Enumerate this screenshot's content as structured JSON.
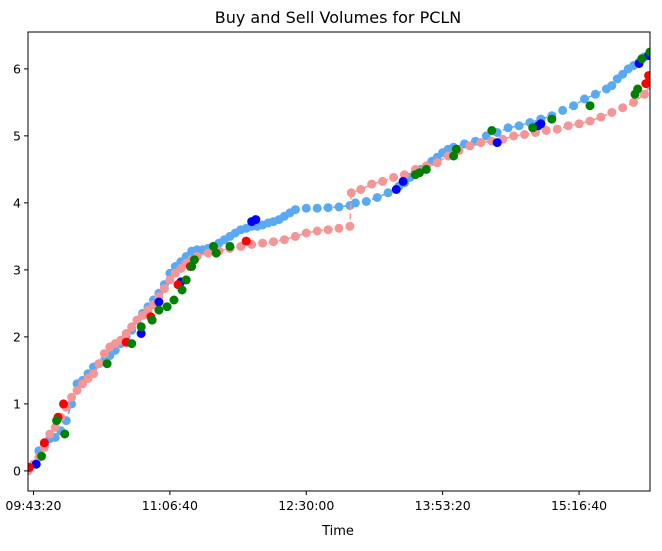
{
  "chart_data": {
    "type": "scatter",
    "title": "Buy and Sell Volumes for PCLN",
    "xlabel": "Time",
    "ylabel": "",
    "x_unit": "seconds since midnight",
    "xlim": [
      34800,
      57600
    ],
    "ylim": [
      -0.3,
      6.55
    ],
    "x_ticks": [
      35000,
      40000,
      45000,
      50000,
      55000
    ],
    "x_tick_labels": [
      "09:43:20",
      "11:06:40",
      "12:30:00",
      "13:53:20",
      "15:16:40"
    ],
    "y_ticks": [
      0,
      1,
      2,
      3,
      4,
      5,
      6
    ],
    "y_tick_labels": [
      "0",
      "1",
      "2",
      "3",
      "4",
      "5",
      "6"
    ],
    "grid": false,
    "legend": false,
    "series": [
      {
        "role": "buy-volume",
        "color": "#5aa9f5",
        "style": "dashed-line-with-markers",
        "x": [
          34800,
          35000,
          35200,
          35400,
          35600,
          35800,
          36000,
          36200,
          36400,
          36600,
          36800,
          37000,
          37200,
          37400,
          37600,
          37800,
          38000,
          38200,
          38400,
          38600,
          38800,
          39000,
          39200,
          39400,
          39600,
          39800,
          40000,
          40200,
          40400,
          40600,
          40800,
          41000,
          41200,
          41400,
          41600,
          41800,
          42000,
          42200,
          42400,
          42600,
          42800,
          43000,
          43200,
          43400,
          43600,
          43800,
          44000,
          44200,
          44400,
          44600,
          45000,
          45400,
          45800,
          46200,
          46600,
          46800,
          47200,
          47600,
          48000,
          48400,
          48600,
          48800,
          49000,
          49200,
          49400,
          49600,
          49800,
          50000,
          50200,
          50400,
          50800,
          51200,
          51600,
          52000,
          52400,
          52800,
          53200,
          53600,
          54000,
          54400,
          54800,
          55200,
          55600,
          56000,
          56200,
          56400,
          56600,
          56800,
          57000,
          57200,
          57400,
          57600
        ],
        "y": [
          0.05,
          0.1,
          0.3,
          0.4,
          0.48,
          0.5,
          0.6,
          0.75,
          1.0,
          1.3,
          1.35,
          1.45,
          1.55,
          1.6,
          1.65,
          1.72,
          1.8,
          1.9,
          2.0,
          2.1,
          2.25,
          2.35,
          2.45,
          2.55,
          2.65,
          2.78,
          2.95,
          3.05,
          3.12,
          3.2,
          3.28,
          3.3,
          3.3,
          3.32,
          3.35,
          3.4,
          3.45,
          3.5,
          3.55,
          3.6,
          3.62,
          3.65,
          3.65,
          3.67,
          3.7,
          3.72,
          3.75,
          3.8,
          3.85,
          3.9,
          3.92,
          3.92,
          3.93,
          3.94,
          3.96,
          4.0,
          4.02,
          4.08,
          4.15,
          4.25,
          4.3,
          4.38,
          4.45,
          4.5,
          4.55,
          4.62,
          4.68,
          4.75,
          4.8,
          4.83,
          4.88,
          4.92,
          5.0,
          5.05,
          5.12,
          5.15,
          5.2,
          5.25,
          5.3,
          5.38,
          5.45,
          5.55,
          5.62,
          5.7,
          5.75,
          5.85,
          5.92,
          6.0,
          6.05,
          6.1,
          6.18,
          6.25
        ]
      },
      {
        "role": "sell-volume",
        "color": "#f59595",
        "style": "dashed-line-with-markers",
        "x": [
          34800,
          35000,
          35200,
          35400,
          35600,
          35800,
          36000,
          36200,
          36400,
          36600,
          36800,
          37000,
          37200,
          37400,
          37600,
          37800,
          38000,
          38200,
          38400,
          38600,
          38800,
          39000,
          39200,
          39400,
          39600,
          39800,
          40000,
          40200,
          40400,
          40600,
          40800,
          41000,
          41400,
          41800,
          42200,
          42600,
          43000,
          43400,
          43800,
          44200,
          44600,
          45000,
          45400,
          45800,
          46200,
          46600,
          46650,
          47000,
          47400,
          47800,
          48200,
          48600,
          49000,
          49400,
          49800,
          50200,
          50600,
          51000,
          51400,
          51800,
          52200,
          52600,
          53000,
          53400,
          53800,
          54200,
          54600,
          55000,
          55400,
          55800,
          56200,
          56600,
          57000,
          57400,
          57600
        ],
        "y": [
          0.0,
          0.1,
          0.2,
          0.35,
          0.55,
          0.65,
          0.8,
          0.95,
          1.1,
          1.2,
          1.3,
          1.38,
          1.45,
          1.6,
          1.75,
          1.85,
          1.9,
          1.95,
          2.05,
          2.15,
          2.25,
          2.32,
          2.4,
          2.48,
          2.6,
          2.72,
          2.85,
          2.95,
          3.02,
          3.1,
          3.15,
          3.2,
          3.25,
          3.28,
          3.32,
          3.35,
          3.38,
          3.4,
          3.42,
          3.45,
          3.5,
          3.55,
          3.58,
          3.6,
          3.62,
          3.65,
          4.15,
          4.2,
          4.28,
          4.32,
          4.38,
          4.42,
          4.5,
          4.55,
          4.6,
          4.7,
          4.78,
          4.85,
          4.9,
          4.92,
          4.95,
          5.0,
          5.02,
          5.05,
          5.08,
          5.1,
          5.15,
          5.18,
          5.22,
          5.28,
          5.35,
          5.42,
          5.5,
          5.62,
          5.75
        ]
      }
    ],
    "highlights": [
      {
        "role": "large-buy",
        "color": "#0000ff",
        "x": [
          35100,
          38950,
          39600,
          40400,
          43000,
          43150,
          48300,
          48550,
          52000,
          53500,
          53600,
          57200,
          57550
        ],
        "y": [
          0.1,
          2.05,
          2.52,
          2.82,
          3.72,
          3.75,
          4.2,
          4.32,
          4.9,
          5.15,
          5.18,
          6.08,
          6.2
        ]
      },
      {
        "role": "large-sell",
        "color": "#ff0000",
        "x": [
          34850,
          35400,
          35900,
          36100,
          38400,
          39300,
          40300,
          40750,
          42800,
          57450,
          57550
        ],
        "y": [
          0.05,
          0.42,
          0.8,
          1.0,
          1.92,
          2.3,
          2.78,
          3.05,
          3.43,
          5.78,
          5.9
        ]
      },
      {
        "role": "large-event-green",
        "color": "#008000",
        "x": [
          35300,
          35850,
          36150,
          37700,
          38600,
          38950,
          39350,
          39600,
          39900,
          40150,
          40450,
          40600,
          40800,
          40900,
          41600,
          41700,
          42200,
          49000,
          49150,
          49400,
          50400,
          50500,
          51800,
          53300,
          54000,
          55400,
          57050,
          57150,
          57300,
          57600
        ],
        "y": [
          0.22,
          0.75,
          0.55,
          1.6,
          1.9,
          2.15,
          2.25,
          2.4,
          2.45,
          2.55,
          2.7,
          2.85,
          3.05,
          3.15,
          3.35,
          3.25,
          3.35,
          4.42,
          4.45,
          4.5,
          4.7,
          4.8,
          5.08,
          5.12,
          5.25,
          5.45,
          5.62,
          5.7,
          6.15,
          6.25
        ]
      }
    ]
  }
}
